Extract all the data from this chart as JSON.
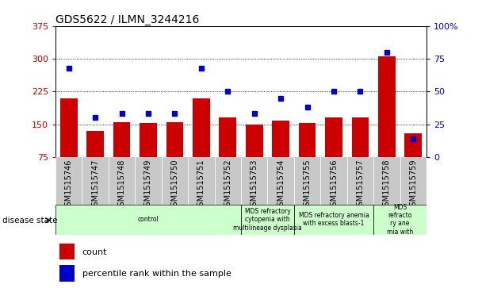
{
  "title": "GDS5622 / ILMN_3244216",
  "samples": [
    "GSM1515746",
    "GSM1515747",
    "GSM1515748",
    "GSM1515749",
    "GSM1515750",
    "GSM1515751",
    "GSM1515752",
    "GSM1515753",
    "GSM1515754",
    "GSM1515755",
    "GSM1515756",
    "GSM1515757",
    "GSM1515758",
    "GSM1515759"
  ],
  "counts": [
    210,
    135,
    155,
    152,
    155,
    210,
    165,
    150,
    158,
    152,
    165,
    165,
    305,
    130
  ],
  "percentiles": [
    68,
    30,
    33,
    33,
    33,
    68,
    50,
    33,
    45,
    38,
    50,
    50,
    80,
    14
  ],
  "ylim_left": [
    75,
    375
  ],
  "ylim_right": [
    0,
    100
  ],
  "yticks_left": [
    75,
    150,
    225,
    300,
    375
  ],
  "yticks_right": [
    0,
    25,
    50,
    75,
    100
  ],
  "bar_color": "#cc0000",
  "dot_color": "#0000cc",
  "grid_color": "#000000",
  "bg_color": "#ffffff",
  "tick_bg": "#c8c8c8",
  "disease_groups": [
    {
      "label": "control",
      "start": 0,
      "end": 7
    },
    {
      "label": "MDS refractory\ncytopenia with\nmultilineage dysplasia",
      "start": 7,
      "end": 9
    },
    {
      "label": "MDS refractory anemia\nwith excess blasts-1",
      "start": 9,
      "end": 12
    },
    {
      "label": "MDS\nrefracto\nry ane\nmia with",
      "start": 12,
      "end": 14
    }
  ],
  "disease_color": "#ccffcc",
  "legend_items": [
    {
      "label": "count",
      "color": "#cc0000"
    },
    {
      "label": "percentile rank within the sample",
      "color": "#0000cc"
    }
  ]
}
